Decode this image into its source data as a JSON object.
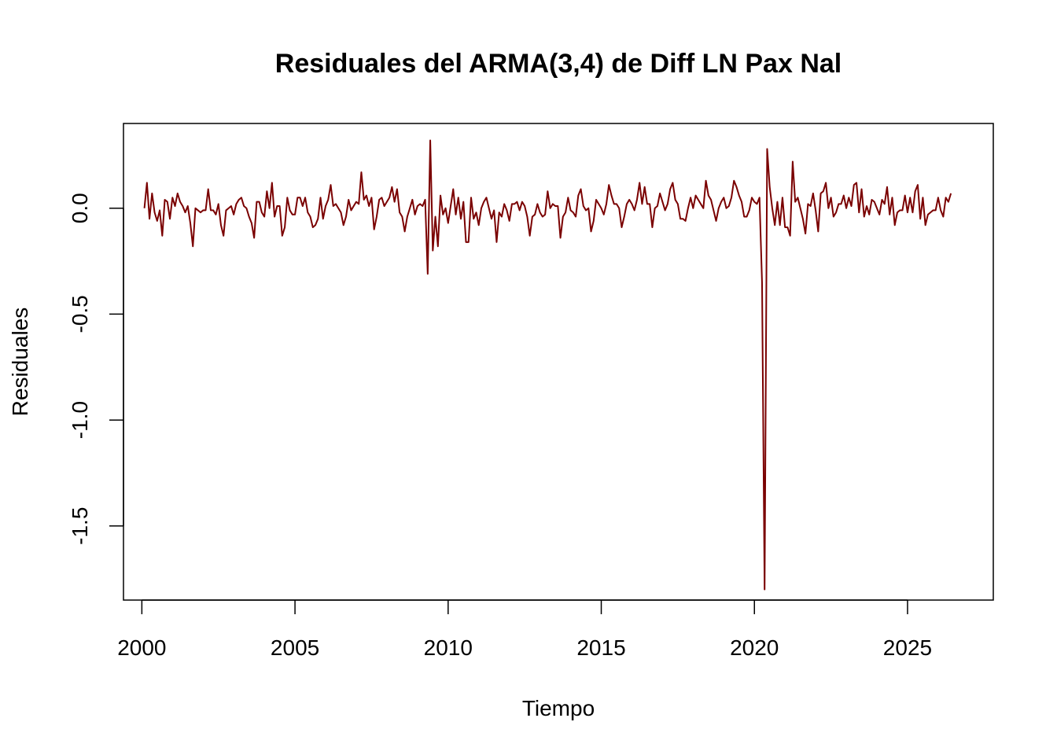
{
  "chart_data": {
    "type": "line",
    "title": "Residuales del ARMA(3,4) de Diff LN Pax Nal",
    "xlabel": "Tiempo",
    "ylabel": "Residuales",
    "xlim": [
      1999.4,
      2027.8
    ],
    "ylim": [
      -1.85,
      0.4
    ],
    "xticks": [
      2000,
      2005,
      2010,
      2015,
      2020,
      2025
    ],
    "xtick_labels": [
      "2000",
      "2005",
      "2010",
      "2015",
      "2020",
      "2025"
    ],
    "yticks": [
      -1.5,
      -1.0,
      -0.5,
      0.0
    ],
    "ytick_labels": [
      "-1.5",
      "-1.0",
      "-0.5",
      "0.0"
    ],
    "grid": false,
    "line_color": "#7a0000",
    "series": [
      {
        "x_start": 2000.083,
        "x_step": 0.083333,
        "values": [
          0.0,
          0.12,
          -0.05,
          0.07,
          -0.02,
          -0.06,
          -0.01,
          -0.13,
          0.04,
          0.03,
          -0.05,
          0.05,
          0.01,
          0.07,
          0.03,
          0.01,
          -0.02,
          0.01,
          -0.07,
          -0.18,
          0.0,
          -0.01,
          -0.02,
          -0.01,
          -0.01,
          0.09,
          -0.01,
          -0.01,
          -0.03,
          0.02,
          -0.08,
          -0.13,
          -0.01,
          0.0,
          0.01,
          -0.03,
          0.02,
          0.04,
          0.05,
          0.01,
          0.0,
          -0.04,
          -0.07,
          -0.14,
          0.03,
          0.03,
          -0.02,
          -0.04,
          0.08,
          0.0,
          0.12,
          -0.04,
          0.01,
          0.01,
          -0.13,
          -0.09,
          0.05,
          -0.01,
          -0.03,
          -0.03,
          0.05,
          0.05,
          0.01,
          0.05,
          -0.02,
          -0.04,
          -0.09,
          -0.08,
          -0.05,
          0.05,
          -0.05,
          0.01,
          0.04,
          0.11,
          0.01,
          0.02,
          0.0,
          -0.02,
          -0.08,
          -0.04,
          0.04,
          -0.01,
          0.01,
          0.03,
          0.02,
          0.17,
          0.04,
          0.06,
          0.01,
          0.05,
          -0.1,
          -0.04,
          0.04,
          0.05,
          0.01,
          0.03,
          0.05,
          0.1,
          0.03,
          0.09,
          -0.02,
          -0.04,
          -0.11,
          -0.04,
          0.0,
          0.04,
          -0.03,
          0.01,
          0.02,
          0.01,
          0.04,
          -0.31,
          0.32,
          -0.2,
          -0.04,
          -0.18,
          0.06,
          -0.03,
          0.0,
          -0.07,
          0.01,
          0.09,
          -0.03,
          0.05,
          -0.05,
          0.03,
          -0.16,
          -0.16,
          0.05,
          -0.05,
          -0.02,
          -0.08,
          0.0,
          0.03,
          0.05,
          0.0,
          -0.05,
          -0.01,
          -0.16,
          -0.02,
          -0.04,
          0.02,
          -0.01,
          -0.06,
          0.02,
          0.02,
          0.03,
          -0.01,
          0.03,
          0.01,
          -0.04,
          -0.13,
          -0.04,
          -0.03,
          0.02,
          -0.02,
          -0.04,
          -0.03,
          0.08,
          0.0,
          0.02,
          0.01,
          0.01,
          -0.14,
          -0.04,
          -0.02,
          0.05,
          -0.01,
          -0.02,
          -0.04,
          0.06,
          0.09,
          0.01,
          -0.01,
          0.0,
          -0.11,
          -0.06,
          0.04,
          0.02,
          0.0,
          -0.03,
          0.02,
          0.11,
          0.06,
          0.02,
          0.02,
          0.0,
          -0.09,
          -0.04,
          0.02,
          0.04,
          0.02,
          -0.01,
          0.04,
          0.12,
          0.02,
          0.1,
          0.02,
          0.02,
          -0.09,
          0.0,
          0.01,
          0.07,
          0.03,
          -0.01,
          0.02,
          0.09,
          0.12,
          0.04,
          0.02,
          -0.05,
          -0.05,
          -0.06,
          0.0,
          0.05,
          0.0,
          0.06,
          0.04,
          0.02,
          0.0,
          0.13,
          0.06,
          0.04,
          -0.01,
          -0.06,
          0.0,
          0.03,
          0.05,
          0.0,
          0.01,
          0.05,
          0.13,
          0.1,
          0.06,
          0.03,
          -0.04,
          -0.04,
          -0.01,
          0.05,
          0.03,
          0.02,
          0.05,
          -0.35,
          -1.8,
          0.28,
          0.1,
          0.0,
          -0.08,
          0.03,
          -0.08,
          0.05,
          -0.09,
          -0.09,
          -0.13,
          0.22,
          0.03,
          0.05,
          0.0,
          -0.05,
          -0.12,
          0.02,
          0.01,
          0.07,
          -0.01,
          -0.11,
          0.07,
          0.08,
          0.12,
          0.0,
          0.05,
          -0.04,
          -0.02,
          0.02,
          0.02,
          0.06,
          0.0,
          0.05,
          0.01,
          0.11,
          0.12,
          -0.02,
          0.09,
          -0.04,
          0.01,
          -0.03,
          0.04,
          0.03,
          0.0,
          -0.03,
          0.04,
          0.02,
          0.1,
          -0.03,
          0.05,
          -0.08,
          -0.02,
          -0.01,
          -0.01,
          0.06,
          -0.02,
          0.05,
          -0.02,
          0.08,
          0.11,
          -0.05,
          0.05,
          -0.08,
          -0.03,
          -0.02,
          -0.01,
          -0.01,
          0.05,
          -0.01,
          -0.04,
          0.05,
          0.03,
          0.07
        ]
      }
    ]
  }
}
